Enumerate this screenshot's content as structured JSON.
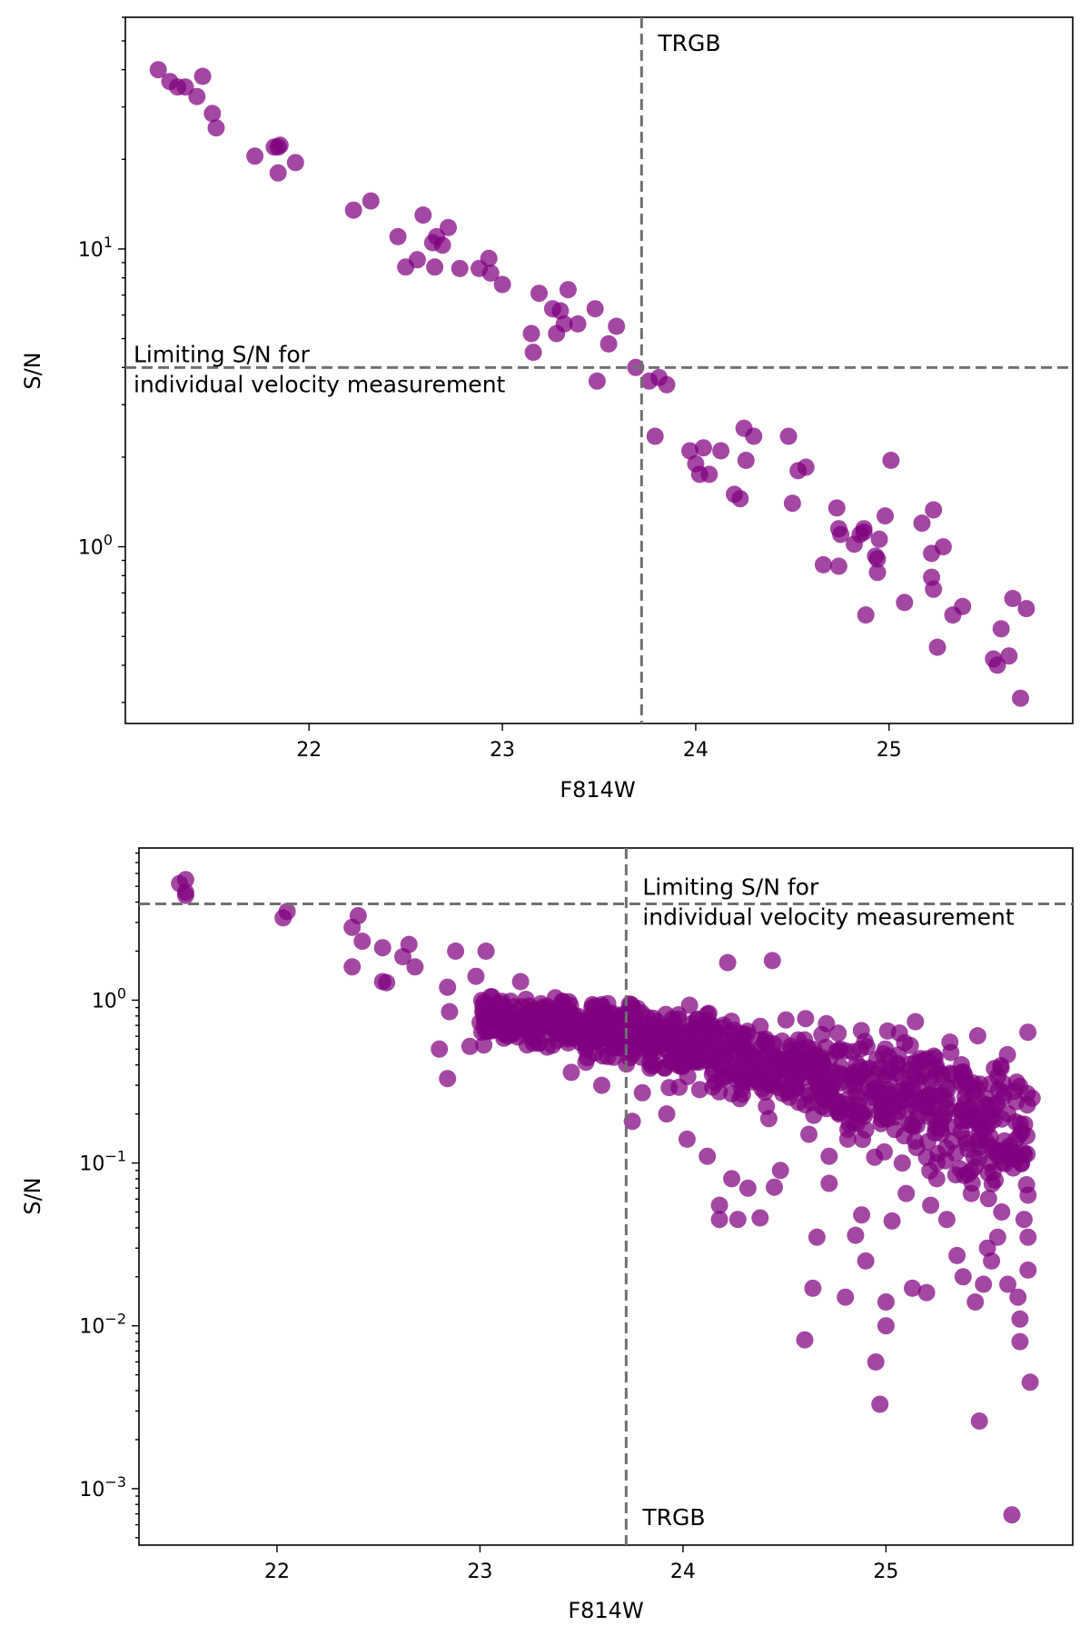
{
  "chart_data": [
    {
      "type": "scatter",
      "xlabel": "F814W",
      "ylabel": "S/N",
      "yscale": "log",
      "xlim": [
        21.05,
        25.95
      ],
      "ylim": [
        0.255,
        60
      ],
      "xticks": [
        22,
        23,
        24,
        25
      ],
      "yticks": [
        {
          "value": 1,
          "mantissa": "10",
          "exp": "0"
        },
        {
          "value": 10,
          "mantissa": "10",
          "exp": "1"
        }
      ],
      "marker_color": "#800080",
      "vline": {
        "x": 23.72,
        "label": "TRGB",
        "label_position": "top"
      },
      "hline": {
        "y": 4.0,
        "label_lines": [
          "Limiting S/N for",
          "individual velocity measurement"
        ],
        "label_position": "left"
      },
      "x": [
        21.22,
        21.28,
        21.32,
        21.36,
        21.42,
        21.45,
        21.5,
        21.52,
        21.72,
        21.82,
        21.84,
        21.84,
        21.85,
        21.93,
        22.23,
        22.32,
        22.46,
        22.5,
        22.56,
        22.59,
        22.64,
        22.65,
        22.66,
        22.69,
        22.72,
        22.78,
        22.88,
        22.93,
        22.94,
        23.0,
        23.15,
        23.16,
        23.19,
        23.26,
        23.28,
        23.3,
        23.32,
        23.34,
        23.39,
        23.48,
        23.49,
        23.55,
        23.59,
        23.69,
        23.76,
        23.81,
        23.85,
        23.79,
        23.97,
        24.0,
        24.02,
        24.04,
        24.07,
        24.13,
        24.2,
        24.23,
        24.25,
        24.26,
        24.3,
        24.48,
        24.5,
        24.53,
        24.57,
        24.66,
        24.73,
        24.74,
        24.74,
        24.75,
        24.82,
        24.85,
        24.87,
        24.87,
        24.88,
        24.93,
        24.94,
        24.94,
        24.95,
        24.98,
        25.01,
        25.08,
        25.17,
        25.22,
        25.22,
        25.23,
        25.23,
        25.25,
        25.28,
        25.33,
        25.38,
        25.54,
        25.56,
        25.58,
        25.62,
        25.64,
        25.68,
        25.71
      ],
      "y": [
        40,
        36.5,
        35,
        35,
        32.5,
        38,
        28.5,
        25.5,
        20.5,
        22,
        22,
        18,
        22.3,
        19.5,
        13.5,
        14.5,
        11,
        8.7,
        9.2,
        13,
        10.5,
        8.7,
        11,
        10.3,
        11.8,
        8.6,
        8.6,
        9.3,
        8.3,
        7.6,
        5.2,
        4.5,
        7.1,
        6.3,
        5.2,
        6.2,
        5.6,
        7.3,
        5.6,
        6.3,
        3.6,
        4.8,
        5.5,
        4.0,
        3.6,
        3.7,
        3.5,
        2.35,
        2.1,
        1.9,
        1.75,
        2.15,
        1.75,
        2.1,
        1.5,
        1.45,
        2.5,
        1.95,
        2.35,
        2.35,
        1.4,
        1.8,
        1.85,
        0.87,
        1.35,
        1.15,
        0.86,
        1.1,
        1.02,
        1.1,
        1.15,
        1.12,
        0.59,
        0.93,
        0.82,
        0.91,
        1.06,
        1.27,
        1.95,
        0.65,
        1.2,
        0.95,
        0.79,
        0.72,
        1.33,
        0.46,
        1.0,
        0.59,
        0.63,
        0.42,
        0.4,
        0.53,
        0.43,
        0.67,
        0.31,
        0.62
      ]
    },
    {
      "type": "scatter",
      "xlabel": "F814W",
      "ylabel": "S/N",
      "yscale": "log",
      "xlim": [
        21.32,
        25.92
      ],
      "ylim": [
        0.00045,
        8.6
      ],
      "xticks": [
        22,
        23,
        24,
        25
      ],
      "yticks": [
        {
          "value": 0.001,
          "mantissa": "10",
          "exp": "−3"
        },
        {
          "value": 0.01,
          "mantissa": "10",
          "exp": "−2"
        },
        {
          "value": 0.1,
          "mantissa": "10",
          "exp": "−1"
        },
        {
          "value": 1,
          "mantissa": "10",
          "exp": "0"
        }
      ],
      "marker_color": "#800080",
      "vline": {
        "x": 23.72,
        "label": "TRGB",
        "label_position": "bottom"
      },
      "hline": {
        "y": 3.9,
        "label_lines": [
          "Limiting S/N for",
          "individual velocity measurement"
        ],
        "label_position": "right"
      },
      "x": [
        21.52,
        21.55,
        21.55,
        21.55,
        22.03,
        22.05,
        22.37,
        22.37,
        22.4,
        22.42,
        22.52,
        22.52,
        22.54,
        22.62,
        22.65,
        22.68,
        22.8,
        22.84,
        22.84,
        22.85,
        22.88,
        22.95,
        22.98,
        23.03,
        23.1,
        23.2,
        23.3,
        23.45,
        23.52,
        23.6,
        23.63,
        23.75,
        23.8,
        23.87,
        23.92,
        24.02,
        24.08,
        24.12,
        24.18,
        24.18,
        24.22,
        24.24,
        24.27,
        24.32,
        24.38,
        24.44,
        24.45,
        24.48,
        24.6,
        24.62,
        24.64,
        24.66,
        24.68,
        24.72,
        24.72,
        24.8,
        24.85,
        24.88,
        24.9,
        24.95,
        24.97,
        25.0,
        25.0,
        25.03,
        25.08,
        25.1,
        25.13,
        25.18,
        25.2,
        25.22,
        25.25,
        25.3,
        25.35,
        25.38,
        25.42,
        25.44,
        25.46,
        25.48,
        25.5,
        25.52,
        25.55,
        25.57,
        25.6,
        25.62,
        25.65,
        25.66,
        25.66,
        25.68,
        25.7,
        25.7,
        25.71,
        25.72
      ],
      "y": [
        5.2,
        5.5,
        4.6,
        4.4,
        3.2,
        3.5,
        2.8,
        1.6,
        3.3,
        2.3,
        2.1,
        1.3,
        1.28,
        1.85,
        2.2,
        1.6,
        0.5,
        0.33,
        1.2,
        0.85,
        2.0,
        0.52,
        1.4,
        2.0,
        0.95,
        1.3,
        0.95,
        0.36,
        0.5,
        0.3,
        0.45,
        0.18,
        0.27,
        0.6,
        0.2,
        0.14,
        0.44,
        0.11,
        0.045,
        0.055,
        1.7,
        0.08,
        0.045,
        0.07,
        0.046,
        1.75,
        0.071,
        0.09,
        0.0082,
        0.15,
        0.017,
        0.035,
        0.42,
        0.075,
        0.11,
        0.015,
        0.036,
        0.048,
        0.025,
        0.006,
        0.0033,
        0.014,
        0.01,
        0.044,
        0.1,
        0.065,
        0.017,
        0.35,
        0.016,
        0.055,
        0.08,
        0.045,
        0.027,
        0.02,
        0.065,
        0.014,
        0.0026,
        0.018,
        0.03,
        0.025,
        0.035,
        0.05,
        0.018,
        0.00069,
        0.015,
        0.008,
        0.011,
        0.045,
        0.035,
        0.022,
        0.0045,
        0.25
      ],
      "dense_cloud": {
        "note": "many overlapping points between F814W 23.0 and 25.7",
        "x_range": [
          23.0,
          25.7
        ],
        "y_upper_start": 1.3,
        "y_upper_end": 0.8,
        "y_lower_start": 0.45,
        "y_lower_end": 0.03,
        "count": 900
      }
    }
  ]
}
